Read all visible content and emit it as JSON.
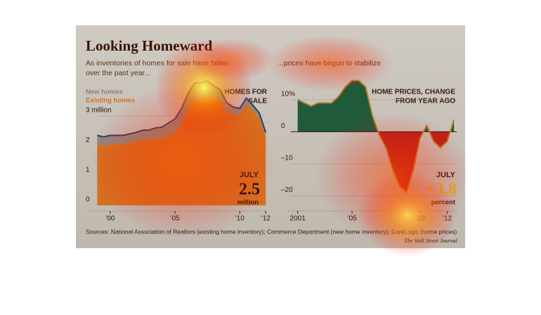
{
  "title": "Looking Homeward",
  "source": "Sources: National Association of Realtors (existing home inventory); Commerce Department (new home inventory); CoreLogic (home prices)",
  "credit": "The Wall Street Journal",
  "chart_data": [
    {
      "type": "stacked-area",
      "subtitle": [
        "As inventories of homes for sale have fallen",
        "over the past year..."
      ],
      "label": [
        "HOMES FOR",
        "SALE"
      ],
      "x": [
        1999,
        1999.5,
        2000,
        2000.5,
        2001,
        2001.5,
        2002,
        2002.5,
        2003,
        2003.5,
        2004,
        2004.5,
        2005,
        2005.5,
        2006,
        2006.5,
        2007,
        2007.5,
        2008,
        2008.5,
        2009,
        2009.5,
        2010,
        2010.5,
        2011,
        2011.5,
        2012
      ],
      "series": [
        {
          "name": "Existing homes",
          "color": "#d5701f",
          "values": [
            2.05,
            2.0,
            2.05,
            2.05,
            2.05,
            2.1,
            2.15,
            2.2,
            2.2,
            2.25,
            2.25,
            2.35,
            2.45,
            2.75,
            3.2,
            3.55,
            3.6,
            3.7,
            3.6,
            3.5,
            3.15,
            3.05,
            3.05,
            3.4,
            3.2,
            2.95,
            2.3
          ]
        },
        {
          "name": "New homes",
          "color": "#8a8278",
          "values": [
            0.3,
            0.3,
            0.3,
            0.3,
            0.3,
            0.3,
            0.3,
            0.32,
            0.33,
            0.35,
            0.38,
            0.42,
            0.45,
            0.5,
            0.55,
            0.55,
            0.53,
            0.48,
            0.42,
            0.38,
            0.3,
            0.25,
            0.21,
            0.2,
            0.17,
            0.16,
            0.15
          ]
        }
      ],
      "line_color": "#2c3e66",
      "xlim": [
        1998.6,
        2012.1
      ],
      "xticks": [
        {
          "value": 2000,
          "label": "’00"
        },
        {
          "value": 2005,
          "label": "’05"
        },
        {
          "value": 2010,
          "label": "’10"
        },
        {
          "value": 2012,
          "label": "’12"
        }
      ],
      "ylim": [
        0,
        4.3
      ],
      "yticks": [
        0,
        1,
        2,
        {
          "value": 3,
          "label": "3 million"
        }
      ],
      "grid": true,
      "annotation": {
        "month": "JULY",
        "value": 2.5,
        "unit": "million"
      }
    },
    {
      "type": "area",
      "subtitle": [
        "...prices have begun to stabilize"
      ],
      "label": [
        "HOME PRICES, CHANGE",
        "FROM YEAR AGO"
      ],
      "x": [
        2001,
        2001.5,
        2002,
        2002.5,
        2003,
        2003.5,
        2004,
        2004.5,
        2005,
        2005.5,
        2006,
        2006.5,
        2007,
        2007.5,
        2008,
        2008.5,
        2009,
        2009.5,
        2010,
        2010.5,
        2011,
        2011.5,
        2012,
        2012.5
      ],
      "values": [
        10,
        9,
        8,
        9,
        9,
        9,
        11,
        14,
        16,
        16,
        14,
        5,
        -1,
        -5,
        -12,
        -17,
        -19,
        -12,
        -2,
        2,
        -3,
        -5,
        -3,
        3.8
      ],
      "positive_color": "#1f5a3a",
      "negative_color": "#b8241a",
      "line_color": "#c07a2a",
      "xlim": [
        2000.5,
        2012.7
      ],
      "xticks": [
        2001,
        {
          "value": 2005,
          "label": "’05"
        },
        {
          "value": 2010,
          "label": "’10"
        },
        {
          "value": 2012,
          "label": "’12"
        }
      ],
      "ylim": [
        -23,
        17
      ],
      "yticks": [
        {
          "value": -20,
          "label": "–20"
        },
        {
          "value": -10,
          "label": "–10"
        },
        0,
        {
          "value": 10,
          "label": "10%"
        }
      ],
      "grid": true,
      "annotation": {
        "month": "JULY",
        "value": 3.8,
        "label": "+3.8",
        "unit": "percent"
      }
    }
  ]
}
